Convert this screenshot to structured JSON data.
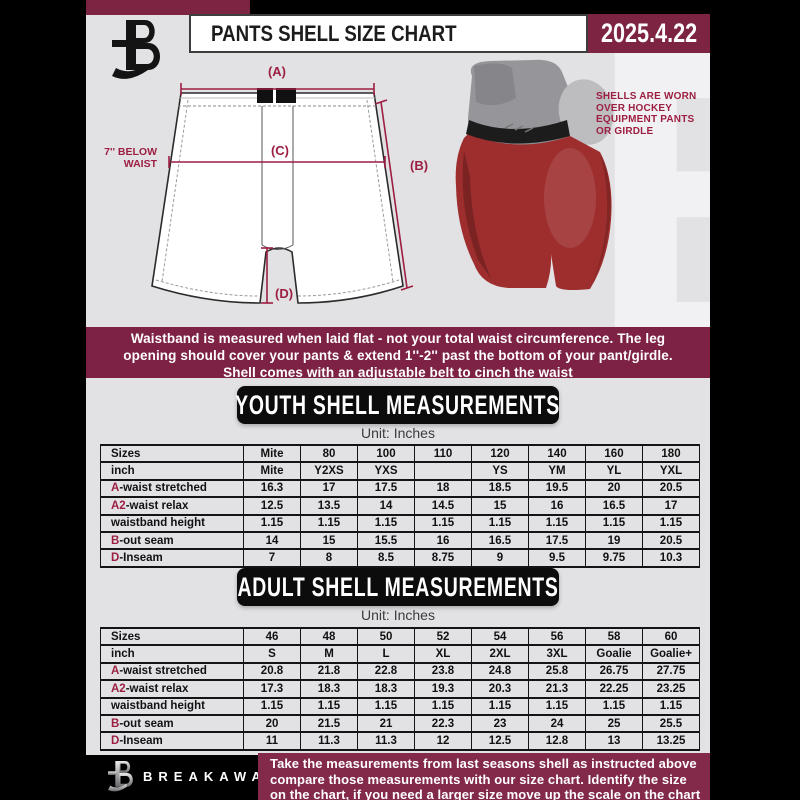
{
  "header": {
    "title": "PANTS SHELL SIZE CHART",
    "date": "2025.4.22"
  },
  "diagram": {
    "label_a": "(A)",
    "label_b": "(B)",
    "label_c": "(C)",
    "label_d": "(D)",
    "waist_note": [
      "7'' BELOW",
      "WAIST"
    ],
    "photo_caption": [
      "SHELLS ARE WORN",
      "OVER HOCKEY",
      "EQUIPMENT PANTS",
      "OR GIRDLE"
    ]
  },
  "notice": {
    "lines": [
      "Waistband is measured when laid flat - not your total waist circumference. The leg",
      "opening should cover your pants & extend 1''-2'' past the bottom of your pant/girdle.",
      "Shell comes with an adjustable belt to cinch the waist"
    ]
  },
  "youth": {
    "banner": "YOUTH SHELL MEASUREMENTS",
    "unit": "Unit: Inches",
    "table": {
      "rows": [
        {
          "prefix": "",
          "label": "Sizes",
          "values": [
            "Mite",
            "80",
            "100",
            "110",
            "120",
            "140",
            "160",
            "180"
          ]
        },
        {
          "prefix": "",
          "label": "inch",
          "values": [
            "Mite",
            "Y2XS",
            "YXS",
            "",
            "YS",
            "YM",
            "YL",
            "YXL"
          ]
        },
        {
          "prefix": "A",
          "label": "-waist stretched",
          "values": [
            "16.3",
            "17",
            "17.5",
            "18",
            "18.5",
            "19.5",
            "20",
            "20.5"
          ]
        },
        {
          "prefix": "A2",
          "label": "-waist relax",
          "values": [
            "12.5",
            "13.5",
            "14",
            "14.5",
            "15",
            "16",
            "16.5",
            "17"
          ]
        },
        {
          "prefix": "",
          "label": "waistband height",
          "values": [
            "1.15",
            "1.15",
            "1.15",
            "1.15",
            "1.15",
            "1.15",
            "1.15",
            "1.15"
          ]
        },
        {
          "prefix": "B",
          "label": "-out seam",
          "values": [
            "14",
            "15",
            "15.5",
            "16",
            "16.5",
            "17.5",
            "19",
            "20.5"
          ]
        },
        {
          "prefix": "D",
          "label": "-Inseam",
          "values": [
            "7",
            "8",
            "8.5",
            "8.75",
            "9",
            "9.5",
            "9.75",
            "10.3"
          ]
        }
      ]
    }
  },
  "adult": {
    "banner": "ADULT SHELL MEASUREMENTS",
    "unit": "Unit: Inches",
    "table": {
      "rows": [
        {
          "prefix": "",
          "label": "Sizes",
          "values": [
            "46",
            "48",
            "50",
            "52",
            "54",
            "56",
            "58",
            "60"
          ]
        },
        {
          "prefix": "",
          "label": "inch",
          "values": [
            "S",
            "M",
            "L",
            "XL",
            "2XL",
            "3XL",
            "Goalie",
            "Goalie+"
          ]
        },
        {
          "prefix": "A",
          "label": "-waist stretched",
          "values": [
            "20.8",
            "21.8",
            "22.8",
            "23.8",
            "24.8",
            "25.8",
            "26.75",
            "27.75"
          ]
        },
        {
          "prefix": "A2",
          "label": "-waist relax",
          "values": [
            "17.3",
            "18.3",
            "18.3",
            "19.3",
            "20.3",
            "21.3",
            "22.25",
            "23.25"
          ]
        },
        {
          "prefix": "",
          "label": "waistband height",
          "values": [
            "1.15",
            "1.15",
            "1.15",
            "1.15",
            "1.15",
            "1.15",
            "1.15",
            "1.15"
          ]
        },
        {
          "prefix": "B",
          "label": "-out seam",
          "values": [
            "20",
            "21.5",
            "21",
            "22.3",
            "23",
            "24",
            "25",
            "25.5"
          ]
        },
        {
          "prefix": "D",
          "label": "-Inseam",
          "values": [
            "11",
            "11.3",
            "11.3",
            "12",
            "12.5",
            "12.8",
            "13",
            "13.25"
          ]
        }
      ]
    }
  },
  "footer": {
    "brand": "BREAKAWAY",
    "lines": [
      "Take the measurements from last seasons shell as instructed above",
      "compare those measurements  with our size chart. Identify the size",
      "on the chart, if you need a larger size move up the scale on the chart"
    ]
  },
  "watermark_letter": "B",
  "colors": {
    "maroon_dark": "#7e2245",
    "maroon_accent": "#9c1f42",
    "footer_maroon": "#832a4b",
    "shell_red": "#9e2e2e",
    "page_black": "#000000",
    "content_gray": "#e2e2e5"
  }
}
